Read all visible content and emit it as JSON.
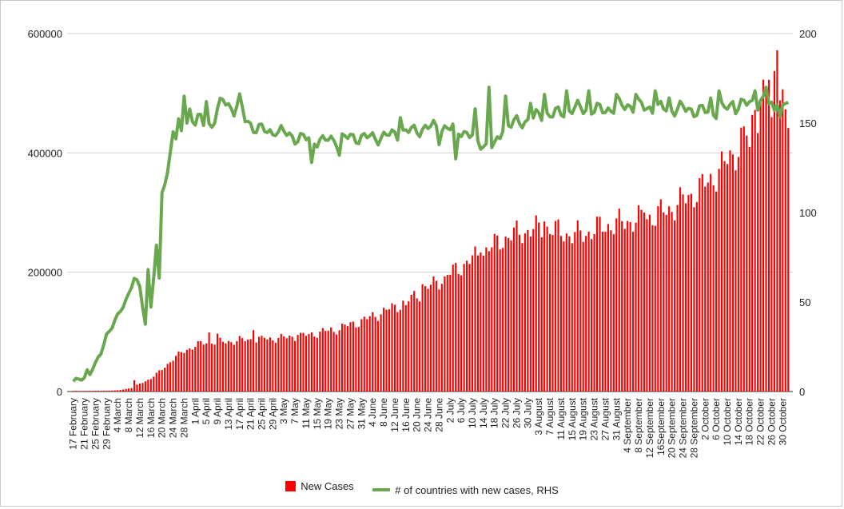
{
  "colors": {
    "bars": "#ff0000",
    "line": "#6aa84f",
    "grid": "#d0d0d0"
  },
  "chart_data": {
    "type": "bar",
    "title": "",
    "xlabel": "",
    "ylabel": "",
    "y2label": "",
    "ylim": [
      0,
      600000
    ],
    "y2lim": [
      0,
      200
    ],
    "yticks": [
      "0",
      "200000",
      "400000",
      "600000"
    ],
    "y2ticks": [
      "0",
      "50",
      "100",
      "150",
      "200"
    ],
    "grid": true,
    "legend_position": "bottom",
    "start_date": "17 February",
    "x_tick_labels": [
      "17 February",
      "21 February",
      "25 February",
      "29 February",
      "4 March",
      "8 March",
      "12 March",
      "16 March",
      "20 March",
      "24 March",
      "28 March",
      "1 April",
      "5 April",
      "9 April",
      "13 April",
      "17 April",
      "21 April",
      "25 April",
      "29 April",
      "3 May",
      "7 May",
      "11 May",
      "15 May",
      "19 May",
      "23 May",
      "27 May",
      "31 May",
      "4 June",
      "8 June",
      "12 June",
      "16 June",
      "20 June",
      "24 June",
      "28 June",
      "2 July",
      "6 July",
      "10 July",
      "14 July",
      "18 July",
      "22 July",
      "26 July",
      "30 July",
      "3 August",
      "7 August",
      "11 August",
      "15 August",
      "19 August",
      "23 August",
      "27 August",
      "31 August",
      "4 September",
      "8 September",
      "12 September",
      "16September",
      "20 September",
      "24 September",
      "28 September",
      "2 October",
      "6 October",
      "10 October",
      "14 October",
      "18 October",
      "22 October",
      "26 October",
      "30 October"
    ],
    "series": [
      {
        "name": "New Cases",
        "type": "bar",
        "axis": "left",
        "keyframes": [
          [
            0,
            1000
          ],
          [
            12,
            1500
          ],
          [
            16,
            2000
          ],
          [
            21,
            6000
          ],
          [
            24,
            13000
          ],
          [
            28,
            22000
          ],
          [
            32,
            37000
          ],
          [
            36,
            55000
          ],
          [
            39,
            65000
          ],
          [
            43,
            75000
          ],
          [
            46,
            80000
          ],
          [
            50,
            84000
          ],
          [
            55,
            83000
          ],
          [
            60,
            86000
          ],
          [
            65,
            87000
          ],
          [
            70,
            88000
          ],
          [
            75,
            90000
          ],
          [
            80,
            92000
          ],
          [
            85,
            95000
          ],
          [
            90,
            100000
          ],
          [
            95,
            105000
          ],
          [
            100,
            112000
          ],
          [
            105,
            120000
          ],
          [
            110,
            130000
          ],
          [
            115,
            140000
          ],
          [
            120,
            150000
          ],
          [
            125,
            165000
          ],
          [
            130,
            180000
          ],
          [
            135,
            195000
          ],
          [
            140,
            210000
          ],
          [
            145,
            225000
          ],
          [
            150,
            240000
          ],
          [
            155,
            255000
          ],
          [
            160,
            265000
          ],
          [
            165,
            270000
          ],
          [
            170,
            275000
          ],
          [
            175,
            268000
          ],
          [
            180,
            262000
          ],
          [
            185,
            265000
          ],
          [
            190,
            275000
          ],
          [
            195,
            280000
          ],
          [
            200,
            285000
          ],
          [
            205,
            290000
          ],
          [
            210,
            295000
          ],
          [
            215,
            305000
          ],
          [
            220,
            320000
          ],
          [
            225,
            335000
          ],
          [
            230,
            355000
          ],
          [
            235,
            380000
          ],
          [
            240,
            410000
          ],
          [
            245,
            450000
          ],
          [
            248,
            480000
          ],
          [
            251,
            520000
          ],
          [
            253,
            545000
          ],
          [
            256,
            480000
          ],
          [
            258,
            445000
          ]
        ],
        "spikes": [
          [
            22,
            19000
          ],
          [
            49,
            99000
          ],
          [
            52,
            97000
          ],
          [
            60,
            93000
          ],
          [
            65,
            103000
          ],
          [
            69,
            90000
          ],
          [
            81,
            95000
          ],
          [
            94,
            100000
          ],
          [
            120,
            145000
          ],
          [
            126,
            180000
          ],
          [
            134,
            193000
          ],
          [
            147,
            233000
          ],
          [
            170,
            285000
          ],
          [
            206,
            300000
          ],
          [
            244,
            410000
          ],
          [
            246,
            472000
          ],
          [
            254,
            572000
          ],
          [
            250,
            505000
          ],
          [
            252,
            460000
          ]
        ]
      },
      {
        "name": "# of countries with new cases, RHS",
        "type": "line",
        "axis": "right",
        "keyframes": [
          [
            0,
            5
          ],
          [
            2,
            7
          ],
          [
            4,
            8
          ],
          [
            5,
            12
          ],
          [
            6,
            10
          ],
          [
            8,
            15
          ],
          [
            10,
            22
          ],
          [
            12,
            32
          ],
          [
            14,
            36
          ],
          [
            16,
            42
          ],
          [
            18,
            48
          ],
          [
            20,
            55
          ],
          [
            22,
            63
          ],
          [
            24,
            58
          ],
          [
            26,
            38
          ],
          [
            27,
            68
          ],
          [
            28,
            48
          ],
          [
            30,
            80
          ],
          [
            31,
            62
          ],
          [
            32,
            112
          ],
          [
            34,
            122
          ],
          [
            36,
            148
          ],
          [
            37,
            140
          ],
          [
            38,
            148
          ],
          [
            40,
            142
          ],
          [
            42,
            158
          ],
          [
            44,
            150
          ],
          [
            46,
            152
          ],
          [
            48,
            148
          ],
          [
            50,
            150
          ],
          [
            52,
            156
          ],
          [
            54,
            163
          ],
          [
            56,
            160
          ],
          [
            58,
            158
          ],
          [
            60,
            162
          ],
          [
            62,
            152
          ],
          [
            65,
            148
          ],
          [
            70,
            145
          ],
          [
            75,
            145
          ],
          [
            80,
            142
          ],
          [
            90,
            140
          ],
          [
            100,
            142
          ],
          [
            110,
            142
          ],
          [
            120,
            145
          ],
          [
            130,
            148
          ],
          [
            140,
            146
          ],
          [
            148,
            138
          ],
          [
            152,
            136
          ],
          [
            155,
            148
          ],
          [
            160,
            150
          ],
          [
            165,
            152
          ],
          [
            170,
            155
          ],
          [
            175,
            155
          ],
          [
            180,
            158
          ],
          [
            185,
            158
          ],
          [
            190,
            157
          ],
          [
            200,
            160
          ],
          [
            210,
            158
          ],
          [
            220,
            158
          ],
          [
            230,
            156
          ],
          [
            240,
            160
          ],
          [
            250,
            162
          ],
          [
            255,
            155
          ],
          [
            258,
            162
          ]
        ],
        "spikes": [
          [
            40,
            165
          ],
          [
            48,
            162
          ],
          [
            73,
            143
          ],
          [
            86,
            128
          ],
          [
            96,
            132
          ],
          [
            118,
            153
          ],
          [
            132,
            138
          ],
          [
            138,
            130
          ],
          [
            145,
            158
          ],
          [
            150,
            170
          ],
          [
            156,
            165
          ],
          [
            165,
            161
          ],
          [
            170,
            166
          ],
          [
            178,
            168
          ],
          [
            186,
            168
          ],
          [
            196,
            166
          ],
          [
            203,
            166
          ],
          [
            210,
            168
          ],
          [
            215,
            164
          ],
          [
            230,
            164
          ],
          [
            233,
            168
          ],
          [
            238,
            162
          ],
          [
            246,
            168
          ],
          [
            250,
            170
          ],
          [
            254,
            160
          ]
        ]
      }
    ]
  }
}
